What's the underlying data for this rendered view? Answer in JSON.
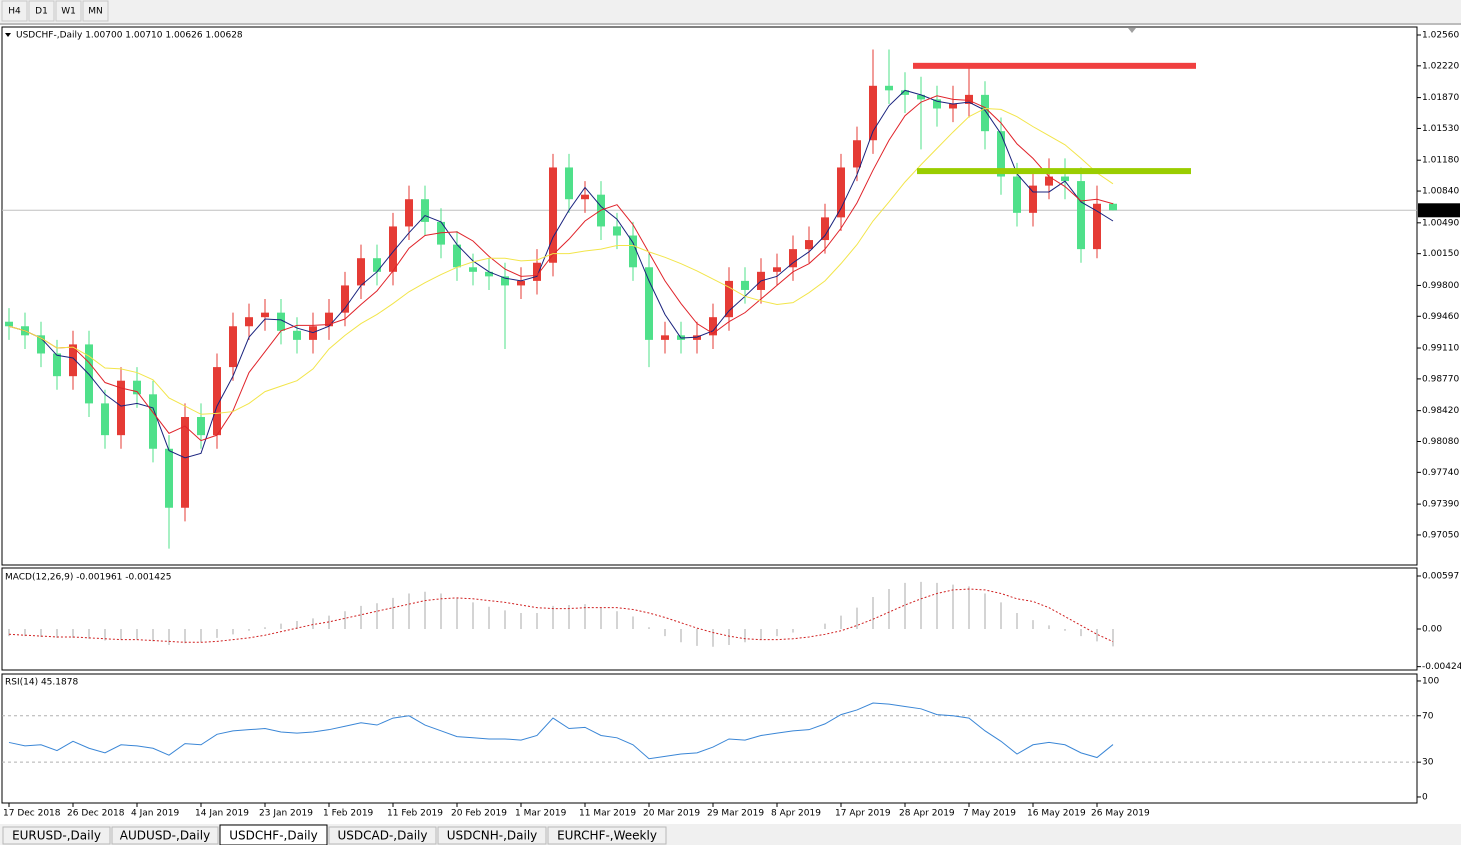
{
  "toolbar": [
    "H4",
    "D1",
    "W1",
    "MN"
  ],
  "tabs": [
    "EURUSD-,Daily",
    "AUDUSD-,Daily",
    "USDCHF-,Daily",
    "USDCAD-,Daily",
    "USDCNH-,Daily",
    "EURCHF-,Weekly"
  ],
  "active_tab": 2,
  "chart_data": [
    {
      "type": "candlestick",
      "title": "USDCHF-,Daily  1.00700 1.00710 1.00626 1.00628",
      "categories": [
        "17 Dec 2018",
        null,
        null,
        null,
        "26 Dec 2018",
        null,
        null,
        null,
        "4 Jan 2019",
        null,
        null,
        null,
        "14 Jan 2019",
        null,
        null,
        null,
        "23 Jan 2019",
        null,
        null,
        null,
        "1 Feb 2019",
        null,
        null,
        null,
        "11 Feb 2019",
        null,
        null,
        null,
        "20 Feb 2019",
        null,
        null,
        null,
        "1 Mar 2019",
        null,
        null,
        null,
        "11 Mar 2019",
        null,
        null,
        null,
        "20 Mar 2019",
        null,
        null,
        null,
        "29 Mar 2019",
        null,
        null,
        null,
        "8 Apr 2019",
        null,
        null,
        null,
        "17 Apr 2019",
        null,
        null,
        null,
        "28 Apr 2019",
        null,
        null,
        null,
        "7 May 2019",
        null,
        null,
        null,
        "16 May 2019",
        null,
        null,
        null,
        "26 May 2019",
        null
      ],
      "open": [
        0.994,
        0.9935,
        0.9925,
        0.9905,
        0.988,
        0.9915,
        0.985,
        0.9815,
        0.9875,
        0.986,
        0.98,
        0.9735,
        0.9835,
        0.9815,
        0.989,
        0.9935,
        0.9945,
        0.995,
        0.993,
        0.992,
        0.9935,
        0.995,
        0.998,
        1.001,
        0.9995,
        1.0045,
        1.0075,
        1.005,
        1.0025,
        1.0,
        0.9995,
        0.999,
        0.998,
        0.9985,
        1.0005,
        1.011,
        1.0075,
        1.008,
        1.0045,
        1.0035,
        1.0,
        0.992,
        0.9925,
        0.992,
        0.9925,
        0.9945,
        0.9985,
        0.9975,
        0.9995,
        1.0,
        1.002,
        1.003,
        1.0055,
        1.011,
        1.014,
        1.02,
        1.0195,
        1.019,
        1.0185,
        1.0175,
        1.018,
        1.019,
        1.015,
        1.01,
        1.006,
        1.009,
        1.01,
        1.0095,
        1.002,
        1.007
      ],
      "high": [
        0.9955,
        0.995,
        0.994,
        0.992,
        0.993,
        0.993,
        0.9865,
        0.989,
        0.989,
        0.9875,
        0.9815,
        0.985,
        0.985,
        0.9905,
        0.995,
        0.996,
        0.9965,
        0.9965,
        0.9945,
        0.995,
        0.9965,
        0.9995,
        1.0025,
        1.0025,
        1.006,
        1.009,
        1.009,
        1.0065,
        1.004,
        1.0015,
        1.001,
        1.0005,
        1.0,
        1.002,
        1.0125,
        1.0125,
        1.0095,
        1.0095,
        1.006,
        1.005,
        1.0015,
        0.994,
        0.994,
        0.994,
        0.996,
        1.0,
        1.0,
        1.001,
        1.0015,
        1.0035,
        1.0045,
        1.007,
        1.0125,
        1.0155,
        1.024,
        1.024,
        1.0215,
        1.021,
        1.02,
        1.02,
        1.0225,
        1.0205,
        1.0165,
        1.0115,
        1.0105,
        1.012,
        1.012,
        1.011,
        1.009,
        1.0071
      ],
      "low": [
        0.992,
        0.991,
        0.989,
        0.9865,
        0.9865,
        0.9835,
        0.98,
        0.98,
        0.9845,
        0.9785,
        0.969,
        0.972,
        0.98,
        0.98,
        0.9875,
        0.992,
        0.993,
        0.9915,
        0.9905,
        0.9905,
        0.992,
        0.9935,
        0.9965,
        0.998,
        0.998,
        1.003,
        1.0035,
        1.001,
        0.9985,
        0.998,
        0.9975,
        0.991,
        0.9965,
        0.997,
        0.999,
        1.006,
        1.006,
        1.003,
        1.002,
        0.9985,
        0.989,
        0.9905,
        0.9905,
        0.9905,
        0.991,
        0.993,
        0.996,
        0.996,
        0.998,
        0.9985,
        1.0005,
        1.0015,
        1.004,
        1.0095,
        1.0125,
        1.018,
        1.017,
        1.013,
        1.0155,
        1.016,
        1.0165,
        1.013,
        1.008,
        1.0045,
        1.0045,
        1.0075,
        1.0075,
        1.0005,
        1.001,
        1.00626
      ],
      "close": [
        0.9935,
        0.9925,
        0.9905,
        0.988,
        0.9915,
        0.985,
        0.9815,
        0.9875,
        0.986,
        0.98,
        0.9735,
        0.9835,
        0.9815,
        0.989,
        0.9935,
        0.9945,
        0.995,
        0.993,
        0.992,
        0.9935,
        0.995,
        0.998,
        1.001,
        0.9995,
        1.0045,
        1.0075,
        1.005,
        1.0025,
        1.0,
        0.9995,
        0.999,
        0.998,
        0.9985,
        1.0005,
        1.011,
        1.0075,
        1.008,
        1.0045,
        1.0035,
        1.0,
        0.992,
        0.9925,
        0.992,
        0.9925,
        0.9945,
        0.9985,
        0.9975,
        0.9995,
        1.0,
        1.002,
        1.003,
        1.0055,
        1.011,
        1.014,
        1.02,
        1.0195,
        1.019,
        1.0185,
        1.0175,
        1.018,
        1.019,
        1.015,
        1.01,
        1.006,
        1.009,
        1.01,
        1.0095,
        1.002,
        1.007,
        1.00628
      ],
      "up_color": "#e53b35",
      "down_color": "#4fe08a",
      "ma_lines": [
        {
          "color": "#1a237e",
          "values": [
            0.9935,
            0.993,
            0.9922,
            0.9903,
            0.99,
            0.9882,
            0.986,
            0.9847,
            0.985,
            0.9845,
            0.9798,
            0.979,
            0.9795,
            0.9847,
            0.988,
            0.9923,
            0.9943,
            0.9942,
            0.9933,
            0.9928,
            0.9935,
            0.9955,
            0.998,
            0.9995,
            1.0017,
            1.0038,
            1.0057,
            1.005,
            1.0025,
            1.0007,
            0.9995,
            0.9988,
            0.9985,
            0.999,
            1.0033,
            1.0063,
            1.0088,
            1.0067,
            1.0053,
            1.0027,
            0.9985,
            0.9948,
            0.9922,
            0.9923,
            0.993,
            0.9952,
            0.9968,
            0.9985,
            0.999,
            1.0005,
            1.0017,
            1.0035,
            1.0065,
            1.0102,
            1.015,
            1.0178,
            1.0195,
            1.019,
            1.0183,
            1.018,
            1.0182,
            1.0173,
            1.0147,
            1.0103,
            1.0083,
            1.0083,
            1.0095,
            1.0072,
            1.0062,
            1.0051
          ]
        },
        {
          "color": "#e0232a",
          "values": [
            0.9935,
            0.993,
            0.9922,
            0.9911,
            0.9912,
            0.9895,
            0.9873,
            0.9867,
            0.9863,
            0.984,
            0.9817,
            0.9825,
            0.9809,
            0.9815,
            0.9842,
            0.9884,
            0.9907,
            0.993,
            0.9936,
            0.9936,
            0.9937,
            0.9943,
            0.9959,
            0.9974,
            0.9996,
            1.0021,
            1.0035,
            1.0038,
            1.0039,
            1.0029,
            1.0012,
            0.9998,
            0.999,
            0.9991,
            1.0014,
            1.0031,
            1.0051,
            1.0063,
            1.0069,
            1.0047,
            1.0016,
            0.9985,
            0.996,
            0.9938,
            0.9927,
            0.994,
            0.995,
            0.9965,
            0.998,
            0.9995,
            1.0004,
            1.002,
            1.0043,
            1.0071,
            1.0107,
            1.014,
            1.0167,
            1.0182,
            1.0189,
            1.0185,
            1.0184,
            1.0176,
            1.0159,
            1.0136,
            1.012,
            1.01,
            1.0089,
            1.0073,
            1.0075,
            1.007
          ]
        },
        {
          "color": "#f2e54a",
          "values": [
            0.9935,
            0.993,
            0.9922,
            0.9911,
            0.9912,
            0.9902,
            0.9889,
            0.9888,
            0.9884,
            0.9876,
            0.9856,
            0.9847,
            0.9838,
            0.9839,
            0.9841,
            0.985,
            0.9863,
            0.9869,
            0.9875,
            0.9888,
            0.991,
            0.9925,
            0.9938,
            0.9948,
            0.996,
            0.9973,
            0.9983,
            0.9992,
            1.0,
            1.0006,
            1.001,
            1.001,
            1.0007,
            1.0008,
            1.0015,
            1.0015,
            1.0018,
            1.002,
            1.0024,
            1.0024,
            1.0017,
            1.0011,
            1.0004,
            0.9996,
            0.9987,
            0.9978,
            0.9968,
            0.9963,
            0.9959,
            0.9961,
            0.9972,
            0.9985,
            1.0004,
            1.0025,
            1.0051,
            1.0072,
            1.0094,
            1.0113,
            1.0131,
            1.0149,
            1.0166,
            1.0175,
            1.0174,
            1.0166,
            1.0155,
            1.0145,
            1.0135,
            1.012,
            1.0104,
            1.0092
          ]
        }
      ],
      "levels": [
        {
          "value": 1.0222,
          "color": "#f04040"
        },
        {
          "value": 1.0106,
          "color": "#9acd00"
        }
      ],
      "current_price": {
        "value": 1.00628,
        "label": "1.00628"
      },
      "ylim": [
        0.96719,
        1.02648
      ],
      "yticks": [
        {
          "value": 1.0256,
          "label": "1.02560"
        },
        {
          "value": 1.0222,
          "label": "1.02220"
        },
        {
          "value": 1.0187,
          "label": "1.01870"
        },
        {
          "value": 1.0153,
          "label": "1.01530"
        },
        {
          "value": 1.0118,
          "label": "1.01180"
        },
        {
          "value": 1.0084,
          "label": "1.00840"
        },
        {
          "value": 1.0049,
          "label": "1.00490"
        },
        {
          "value": 1.0015,
          "label": "1.00150"
        },
        {
          "value": 0.998,
          "label": "0.99800"
        },
        {
          "value": 0.9946,
          "label": "0.99460"
        },
        {
          "value": 0.9911,
          "label": "0.99110"
        },
        {
          "value": 0.9877,
          "label": "0.98770"
        },
        {
          "value": 0.9842,
          "label": "0.98420"
        },
        {
          "value": 0.9808,
          "label": "0.98080"
        },
        {
          "value": 0.9774,
          "label": "0.97740"
        },
        {
          "value": 0.9739,
          "label": "0.97390"
        },
        {
          "value": 0.9705,
          "label": "0.97050"
        }
      ]
    },
    {
      "type": "macd",
      "title": "MACD(12,26,9) -0.001961 -0.001425",
      "histogram": [
        -0.0008,
        -0.0008,
        -0.0009,
        -0.001,
        -0.001,
        -0.0011,
        -0.0013,
        -0.0012,
        -0.0012,
        -0.0014,
        -0.0018,
        -0.0016,
        -0.0015,
        -0.001,
        -0.0006,
        -0.0002,
        0.0002,
        0.0006,
        0.0009,
        0.0012,
        0.0015,
        0.002,
        0.0026,
        0.0029,
        0.0035,
        0.004,
        0.0042,
        0.004,
        0.0035,
        0.003,
        0.0025,
        0.0021,
        0.0018,
        0.0018,
        0.0026,
        0.0027,
        0.0028,
        0.0024,
        0.002,
        0.0014,
        0.0002,
        -0.0008,
        -0.0015,
        -0.0019,
        -0.002,
        -0.0018,
        -0.0015,
        -0.0012,
        -0.0008,
        -0.0004,
        0.0,
        0.0006,
        0.0015,
        0.0024,
        0.0036,
        0.0045,
        0.0052,
        0.0053,
        0.0052,
        0.005,
        0.0048,
        0.004,
        0.003,
        0.0018,
        0.001,
        0.0004,
        -0.0002,
        -0.0008,
        -0.0014,
        -0.001961
      ],
      "hist_color": "#a8a8a8",
      "signal": [
        -0.0006,
        -0.0007,
        -0.0008,
        -0.0009,
        -0.0009,
        -0.001,
        -0.0011,
        -0.0012,
        -0.0012,
        -0.0013,
        -0.0014,
        -0.0015,
        -0.0015,
        -0.0014,
        -0.0012,
        -0.001,
        -0.0007,
        -0.0003,
        0.0001,
        0.0005,
        0.0008,
        0.0012,
        0.0016,
        0.002,
        0.0024,
        0.0028,
        0.0032,
        0.0034,
        0.0035,
        0.0034,
        0.0032,
        0.003,
        0.0027,
        0.0024,
        0.0023,
        0.0023,
        0.0024,
        0.0024,
        0.0024,
        0.0022,
        0.0018,
        0.0013,
        0.0007,
        0.0001,
        -0.0004,
        -0.0008,
        -0.0011,
        -0.0012,
        -0.0012,
        -0.0011,
        -0.0009,
        -0.0006,
        -0.0002,
        0.0004,
        0.0011,
        0.0019,
        0.0027,
        0.0034,
        0.004,
        0.0044,
        0.0045,
        0.0044,
        0.004,
        0.0034,
        0.0031,
        0.0024,
        0.0014,
        0.0004,
        -0.0006,
        -0.001425
      ],
      "signal_color": "#d02020",
      "ylim": [
        -0.00462,
        0.00687
      ],
      "yticks": [
        0.00597,
        {
          "value": 0,
          "label": "0.00"
        },
        -0.004243
      ]
    },
    {
      "type": "line",
      "title": "RSI(14) 45.1878",
      "values": [
        47,
        44,
        45,
        40,
        48,
        42,
        38,
        45,
        44,
        42,
        36,
        46,
        45,
        54,
        57,
        58,
        59,
        56,
        55,
        56,
        58,
        61,
        64,
        62,
        68,
        70,
        62,
        57,
        52,
        51,
        50,
        50,
        49,
        53,
        68,
        59,
        60,
        53,
        51,
        45,
        33,
        35,
        37,
        38,
        43,
        50,
        49,
        53,
        55,
        57,
        58,
        63,
        71,
        75,
        81,
        80,
        78,
        76,
        71,
        70,
        68,
        57,
        48,
        37,
        45,
        47,
        45,
        38,
        34,
        45.1878
      ],
      "color": "#3a86d6",
      "levels": [
        70,
        30
      ],
      "ylim": [
        -5.2,
        106
      ],
      "yticks": [
        100,
        70,
        30,
        0
      ]
    }
  ]
}
